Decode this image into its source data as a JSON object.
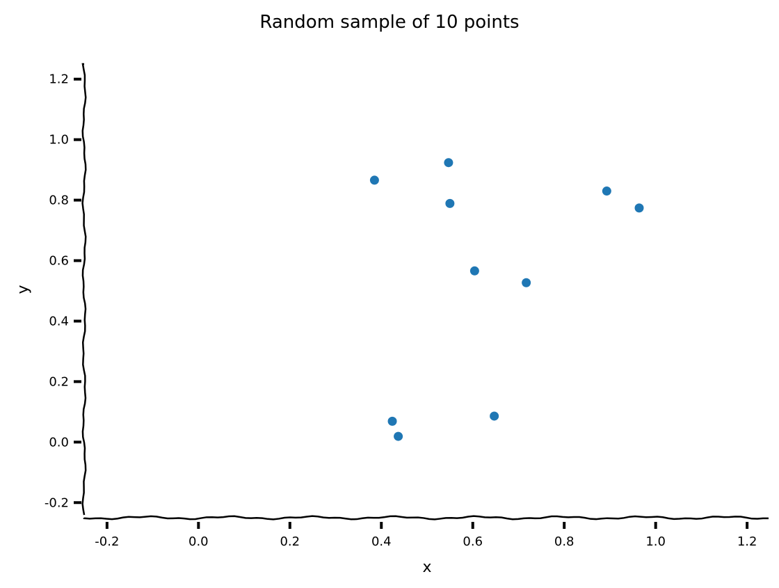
{
  "chart_data": {
    "type": "scatter",
    "title": "Random sample of 10 points",
    "xlabel": "x",
    "ylabel": "y",
    "xlim": [
      -0.25,
      1.25
    ],
    "ylim": [
      -0.25,
      1.25
    ],
    "xticks": [
      "-0.2",
      "0.0",
      "0.2",
      "0.4",
      "0.6",
      "0.8",
      "1.0",
      "1.2"
    ],
    "yticks": [
      "-0.2",
      "0.0",
      "0.2",
      "0.4",
      "0.6",
      "0.8",
      "1.0",
      "1.2"
    ],
    "grid": false,
    "color": "#1f77b4",
    "series": [
      {
        "points": [
          {
            "x": 0.385,
            "y": 0.866
          },
          {
            "x": 0.547,
            "y": 0.924
          },
          {
            "x": 0.55,
            "y": 0.789
          },
          {
            "x": 0.604,
            "y": 0.566
          },
          {
            "x": 0.717,
            "y": 0.527
          },
          {
            "x": 0.893,
            "y": 0.83
          },
          {
            "x": 0.964,
            "y": 0.774
          },
          {
            "x": 0.424,
            "y": 0.069
          },
          {
            "x": 0.437,
            "y": 0.019
          },
          {
            "x": 0.647,
            "y": 0.086
          }
        ]
      }
    ]
  }
}
